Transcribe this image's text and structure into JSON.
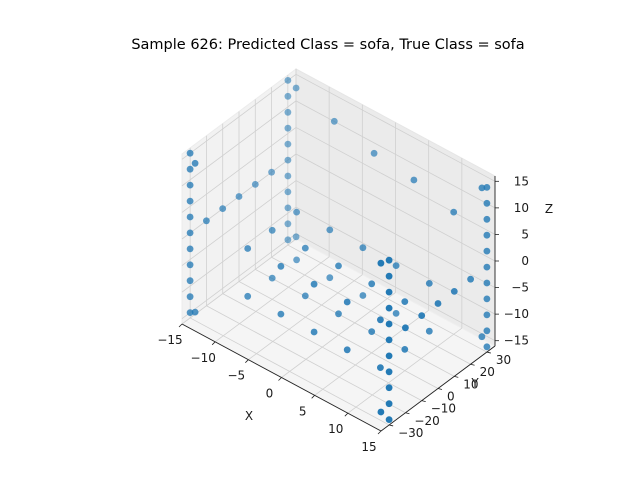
{
  "chart_data": {
    "type": "scatter",
    "title": "Sample 626: Predicted Class = sofa, True Class = sofa",
    "xlabel": "X",
    "ylabel": "Y",
    "zlabel": "Z",
    "xlim": [
      -15,
      15
    ],
    "ylim": [
      -35,
      35
    ],
    "zlim": [
      -16,
      16
    ],
    "x_ticks": [
      -15,
      -10,
      -5,
      0,
      5,
      10,
      15
    ],
    "y_ticks": [
      -30,
      -20,
      -10,
      0,
      10,
      20,
      30
    ],
    "z_ticks": [
      -15,
      -10,
      -5,
      0,
      5,
      10,
      15
    ],
    "x_tick_labels": [
      "−15",
      "−10",
      "−5",
      "0",
      "5",
      "10",
      "15"
    ],
    "y_tick_labels": [
      "−30",
      "−20",
      "−10",
      "0",
      "10",
      "20",
      "30"
    ],
    "z_tick_labels": [
      "−15",
      "−10",
      "−5",
      "0",
      "5",
      "10",
      "15"
    ],
    "grid": true,
    "marker_color": "#1f77b4",
    "points": [
      [
        -15,
        30,
        -15
      ],
      [
        -15,
        30,
        -12
      ],
      [
        -15,
        30,
        -9
      ],
      [
        -15,
        30,
        -6
      ],
      [
        -15,
        30,
        -3
      ],
      [
        -15,
        30,
        0
      ],
      [
        -15,
        30,
        3
      ],
      [
        -15,
        30,
        6
      ],
      [
        -15,
        30,
        9
      ],
      [
        -15,
        30,
        12
      ],
      [
        -15,
        30,
        15
      ],
      [
        15,
        30,
        -15
      ],
      [
        15,
        30,
        -12
      ],
      [
        15,
        30,
        -9
      ],
      [
        15,
        30,
        -6
      ],
      [
        15,
        30,
        -3
      ],
      [
        15,
        30,
        0
      ],
      [
        15,
        30,
        3
      ],
      [
        15,
        30,
        6
      ],
      [
        15,
        30,
        9
      ],
      [
        15,
        30,
        12
      ],
      [
        15,
        30,
        15
      ],
      [
        -15,
        -30,
        -15
      ],
      [
        -15,
        -30,
        -12
      ],
      [
        -15,
        -30,
        -9
      ],
      [
        -15,
        -30,
        -6
      ],
      [
        -15,
        -30,
        -3
      ],
      [
        -15,
        -30,
        0
      ],
      [
        -15,
        -30,
        3
      ],
      [
        -15,
        -30,
        6
      ],
      [
        -15,
        -30,
        9
      ],
      [
        -15,
        -30,
        12
      ],
      [
        -15,
        -30,
        15
      ],
      [
        15,
        -30,
        -15
      ],
      [
        15,
        -30,
        -12
      ],
      [
        15,
        -30,
        -9
      ],
      [
        15,
        -30,
        -6
      ],
      [
        15,
        -30,
        -3
      ],
      [
        15,
        -30,
        0
      ],
      [
        15,
        -30,
        3
      ],
      [
        15,
        -30,
        6
      ],
      [
        15,
        -30,
        9
      ],
      [
        15,
        -30,
        12
      ],
      [
        15,
        -30,
        15
      ],
      [
        -14,
        31,
        -14
      ],
      [
        14,
        31,
        -14
      ],
      [
        -14,
        -31,
        -14
      ],
      [
        14,
        -31,
        -14
      ],
      [
        -14,
        31,
        14
      ],
      [
        14,
        31,
        14
      ],
      [
        -14,
        -31,
        14
      ],
      [
        14,
        -31,
        14
      ],
      [
        -15,
        20,
        0
      ],
      [
        -15,
        10,
        0
      ],
      [
        -15,
        0,
        0
      ],
      [
        -15,
        -10,
        0
      ],
      [
        -15,
        -20,
        0
      ],
      [
        15,
        20,
        0
      ],
      [
        15,
        10,
        0
      ],
      [
        15,
        0,
        0
      ],
      [
        15,
        -10,
        0
      ],
      [
        15,
        -20,
        0
      ],
      [
        -8,
        30,
        12
      ],
      [
        -2,
        30,
        10
      ],
      [
        4,
        30,
        9
      ],
      [
        10,
        30,
        7
      ],
      [
        -10,
        0,
        -3
      ],
      [
        -5,
        0,
        -3
      ],
      [
        0,
        0,
        -3
      ],
      [
        5,
        0,
        -3
      ],
      [
        10,
        0,
        -3
      ],
      [
        -10,
        -15,
        -3
      ],
      [
        -5,
        -15,
        -3
      ],
      [
        0,
        -15,
        -3
      ],
      [
        5,
        -15,
        -3
      ],
      [
        10,
        -15,
        -3
      ],
      [
        -10,
        15,
        -3
      ],
      [
        -5,
        15,
        -3
      ],
      [
        0,
        15,
        -3
      ],
      [
        5,
        15,
        -3
      ],
      [
        10,
        15,
        -3
      ],
      [
        -10,
        0,
        -12
      ],
      [
        -5,
        0,
        -12
      ],
      [
        0,
        0,
        -12
      ],
      [
        5,
        0,
        -12
      ],
      [
        10,
        0,
        -12
      ],
      [
        -10,
        -15,
        -12
      ],
      [
        -5,
        -15,
        -12
      ],
      [
        0,
        -15,
        -12
      ],
      [
        5,
        -15,
        -12
      ],
      [
        10,
        -15,
        -12
      ],
      [
        -10,
        15,
        -12
      ],
      [
        -5,
        15,
        -12
      ],
      [
        0,
        15,
        -12
      ],
      [
        5,
        15,
        -12
      ],
      [
        10,
        15,
        -12
      ]
    ]
  }
}
